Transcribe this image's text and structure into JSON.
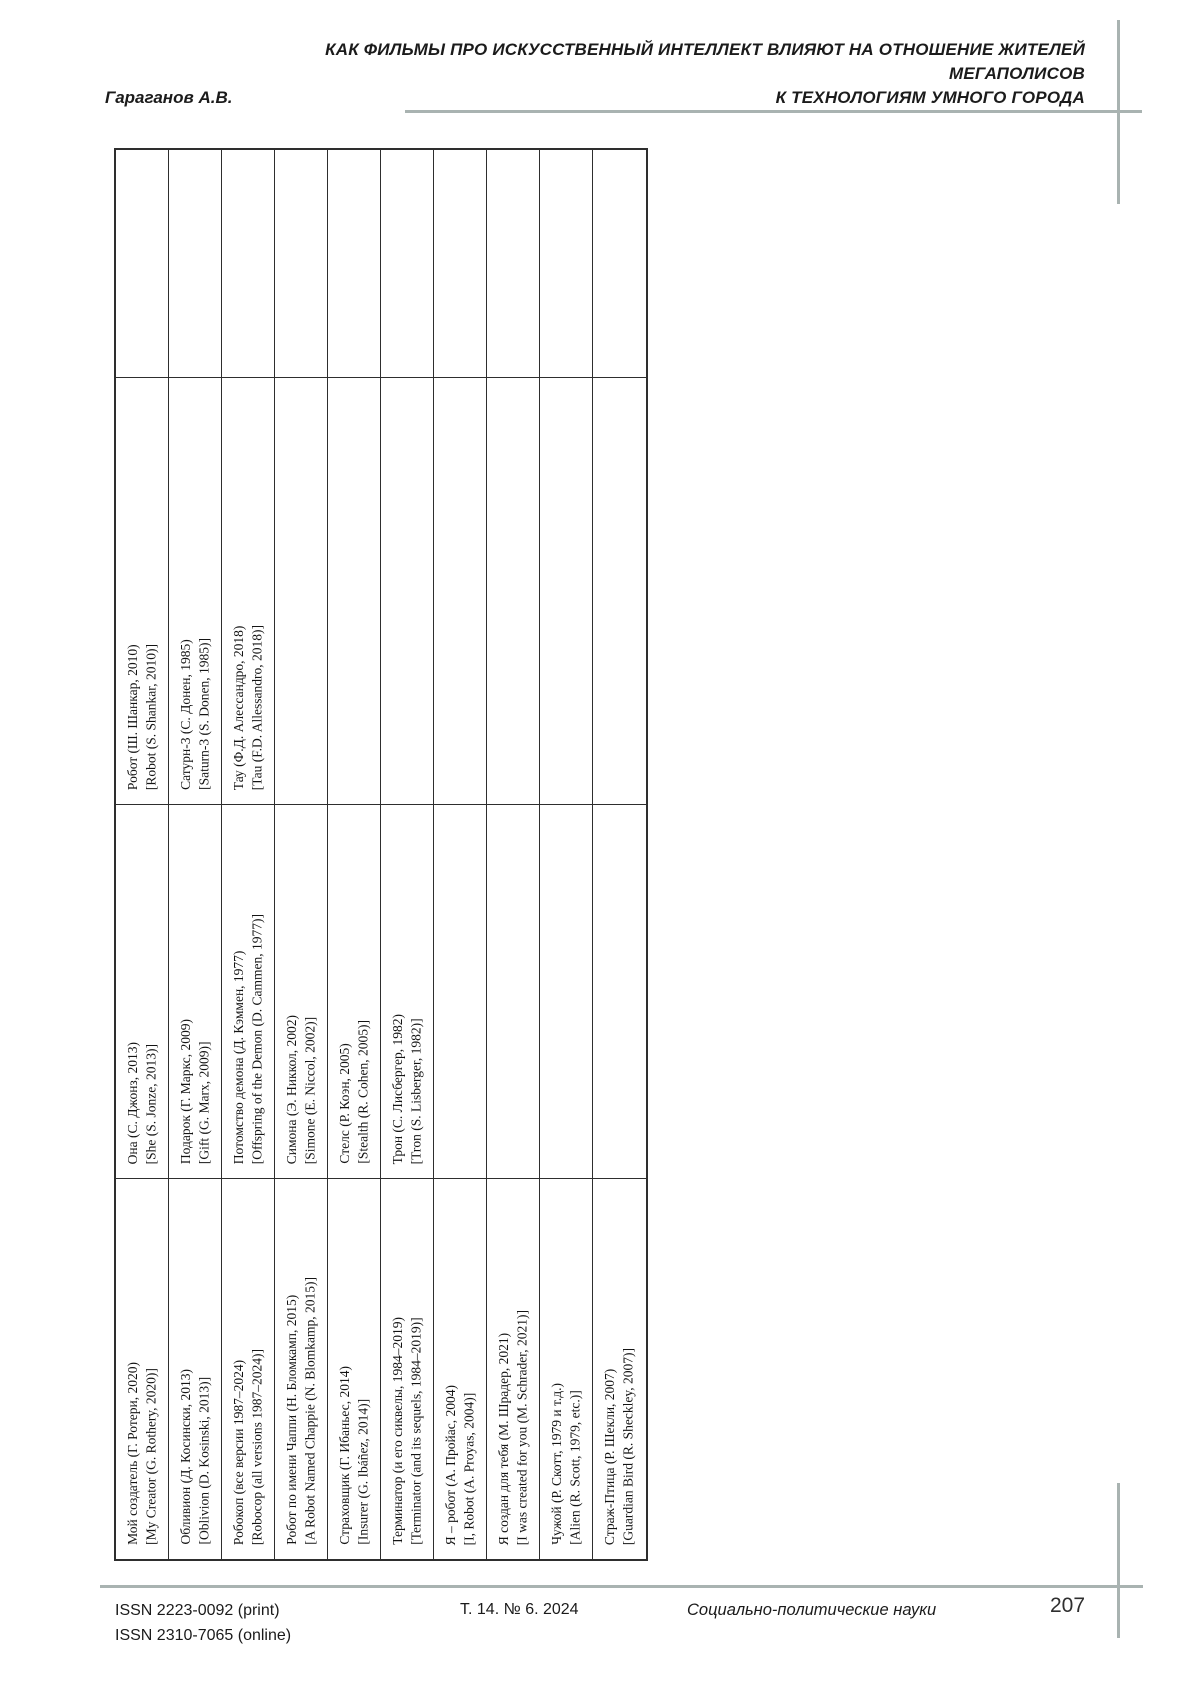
{
  "header": {
    "title_line1": "КАК ФИЛЬМЫ ПРО ИСКУССТВЕННЫЙ ИНТЕЛЛЕКТ ВЛИЯЮТ НА ОТНОШЕНИЕ ЖИТЕЛЕЙ МЕГАПОЛИСОВ",
    "title_line2": "К ТЕХНОЛОГИЯМ УМНОГО ГОРОДА",
    "author": "Гараганов А.В."
  },
  "table": {
    "orientation": "text rotated 90deg, reads bottom-to-top",
    "strips": [
      {
        "top": {
          "ru": "Робот (Ш. Шанкар, 2010)",
          "en": "[Robot (S. Shankar, 2010)]"
        },
        "mid": {
          "ru": "Она (С. Джонз, 2013)",
          "en": "[She (S. Jonze, 2013)]"
        },
        "bottom": {
          "ru": "Мой создатель (Г. Ротери, 2020)",
          "en": "[My Creator (G. Rothery, 2020)]"
        }
      },
      {
        "top": {
          "ru": "Сатурн-3 (С. Донен, 1985)",
          "en": "[Saturn-3 (S. Donen, 1985)]"
        },
        "mid": {
          "ru": "Подарок (Г. Маркс, 2009)",
          "en": "[Gift (G. Marx, 2009)]"
        },
        "bottom": {
          "ru": "Обливион (Д. Косински, 2013)",
          "en": "[Oblivion (D. Kosinski, 2013)]"
        }
      },
      {
        "top": {
          "ru": "Тау (Ф.Д. Алессандро, 2018)",
          "en": "[Tau (F.D. Allessandro, 2018)]"
        },
        "mid": {
          "ru": "Потомство демона (Д. Кэммен, 1977)",
          "en": "[Offspring of the Demon (D. Cammen, 1977)]"
        },
        "bottom": {
          "ru": "Робокоп (все версии 1987–2024)",
          "en": "[Robocop (all versions 1987–2024)]"
        }
      },
      {
        "mid": {
          "ru": "Симона (Э. Никкол, 2002)",
          "en": "[Simone (E. Niccol, 2002)]"
        },
        "bottom": {
          "ru": "Робот по имени Чаппи (Н. Бломкамп, 2015)",
          "en": "[A Robot Named Chappie (N. Blomkamp, 2015)]"
        }
      },
      {
        "mid": {
          "ru": "Стелс (Р. Коэн, 2005)",
          "en": "[Stealth (R. Cohen, 2005)]"
        },
        "bottom": {
          "ru": "Страховщик (Г. Ибаньес, 2014)",
          "en": "[Insurer (G. Ibáñez, 2014)]"
        }
      },
      {
        "mid": {
          "ru": "Трон (С. Лисбергер, 1982)",
          "en": "[Tron (S. Lisberger, 1982)]"
        },
        "bottom": {
          "ru": "Терминатор (и его сиквелы, 1984–2019)",
          "en": "[Terminator (and its sequels, 1984–2019)]"
        }
      },
      {
        "bottom": {
          "ru": "Я – робот (А. Пройас, 2004)",
          "en": "[I, Robot (A. Proyas, 2004)]"
        }
      },
      {
        "bottom": {
          "ru": "Я создан для тебя (М. Шрадер, 2021)",
          "en": "[I was created for you (M. Schrader, 2021)]"
        }
      },
      {
        "bottom": {
          "ru": "Чужой (Р. Скотт, 1979 и т.д.)",
          "en": "[Alien (R. Scott, 1979, etc.)]"
        }
      },
      {
        "bottom": {
          "ru": "Страж-Птица (Р. Шекли, 2007)",
          "en": "[Guardian Bird (R. Sheckley, 2007)]"
        }
      }
    ]
  },
  "footer": {
    "issn_print": "ISSN 2223-0092 (print)",
    "issn_online": "ISSN 2310-7065 (online)",
    "volume": "Т. 14. № 6. 2024",
    "journal": "Социально-политические науки",
    "page_number": "207"
  },
  "colors": {
    "rule_gray": "#a9b3b1",
    "table_border": "#2e2e2e",
    "text": "#141414"
  }
}
